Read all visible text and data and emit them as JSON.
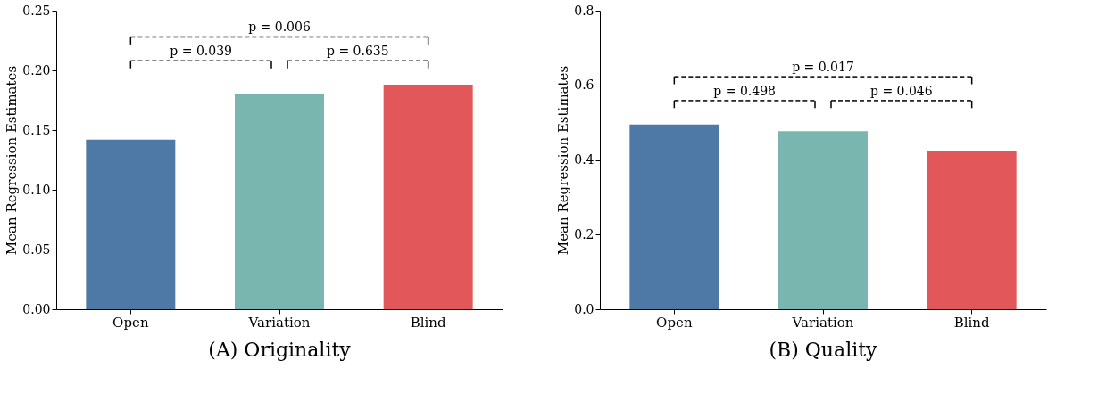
{
  "chart_data": [
    {
      "type": "bar",
      "title": "(A) Originality",
      "ylabel": "Mean Regression Estimates",
      "categories": [
        "Open",
        "Variation",
        "Blind"
      ],
      "values": [
        0.142,
        0.18,
        0.188
      ],
      "colors": [
        "#4e79a7",
        "#79b6b0",
        "#e1575a"
      ],
      "ylim": [
        0,
        0.25
      ],
      "yticks": [
        {
          "value": 0,
          "label": "0.00"
        },
        {
          "value": 0.05,
          "label": "0.05"
        },
        {
          "value": 0.1,
          "label": "0.10"
        },
        {
          "value": 0.15,
          "label": "0.15"
        },
        {
          "value": 0.2,
          "label": "0.20"
        },
        {
          "value": 0.25,
          "label": "0.25"
        }
      ],
      "grid": false,
      "annotations": [
        "p = 0.039",
        "p = 0.635",
        "p = 0.006"
      ]
    },
    {
      "type": "bar",
      "title": "(B) Quality",
      "ylabel": "Mean Regression Estimates",
      "categories": [
        "Open",
        "Variation",
        "Blind"
      ],
      "values": [
        0.495,
        0.477,
        0.423
      ],
      "colors": [
        "#4e79a7",
        "#79b6b0",
        "#e1575a"
      ],
      "ylim": [
        0,
        0.8
      ],
      "yticks": [
        {
          "value": 0,
          "label": "0.0"
        },
        {
          "value": 0.2,
          "label": "0.2"
        },
        {
          "value": 0.4,
          "label": "0.4"
        },
        {
          "value": 0.6,
          "label": "0.6"
        },
        {
          "value": 0.8,
          "label": "0.8"
        }
      ],
      "grid": false,
      "annotations": [
        "p = 0.498",
        "p = 0.046",
        "p = 0.017"
      ]
    }
  ]
}
